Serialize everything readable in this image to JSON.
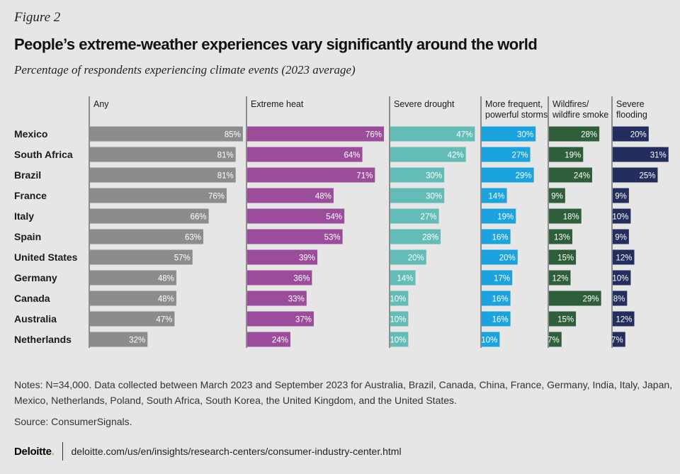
{
  "figure_label": "Figure 2",
  "notes": "Notes: N=34,000. Data collected between March 2023 and September 2023 for Australia, Brazil, Canada, China, France, Germany, India, Italy, Japan, Mexico, Netherlands, Poland, South Africa, South Korea, the United Kingdom, and the United States.",
  "source": "Source: ConsumerSignals.",
  "footer": {
    "logo": "Deloitte",
    "logo_dot": ".",
    "url": "deloitte.com/us/en/insights/research-centers/consumer-industry-center.html"
  },
  "chart_data": {
    "type": "bar",
    "orientation": "horizontal",
    "title": "People’s extreme-weather experiences vary significantly around the world",
    "subtitle": "Percentage of respondents experiencing climate events (2023 average)",
    "categories": [
      "Mexico",
      "South Africa",
      "Brazil",
      "France",
      "Italy",
      "Spain",
      "United States",
      "Germany",
      "Canada",
      "Australia",
      "Netherlands"
    ],
    "value_suffix": "%",
    "series": [
      {
        "name": "Any",
        "label_lines": [
          "Any"
        ],
        "color": "#8c8c8c",
        "values": [
          85,
          81,
          81,
          76,
          66,
          63,
          57,
          48,
          48,
          47,
          32
        ]
      },
      {
        "name": "Extreme heat",
        "label_lines": [
          "Extreme heat"
        ],
        "color": "#9b4d9b",
        "values": [
          76,
          64,
          71,
          48,
          54,
          53,
          39,
          36,
          33,
          37,
          24
        ]
      },
      {
        "name": "Severe drought",
        "label_lines": [
          "Severe drought"
        ],
        "color": "#63bdb6",
        "values": [
          47,
          42,
          30,
          30,
          27,
          28,
          20,
          14,
          10,
          10,
          10
        ]
      },
      {
        "name": "More frequent, powerful storms",
        "label_lines": [
          "More frequent,",
          "powerful storms"
        ],
        "color": "#1ba3e0",
        "values": [
          30,
          27,
          29,
          14,
          19,
          16,
          20,
          17,
          16,
          16,
          10
        ]
      },
      {
        "name": "Wildfires/ wildfire smoke",
        "label_lines": [
          "Wildfires/",
          "wildfire smoke"
        ],
        "color": "#2e5e3a",
        "values": [
          28,
          19,
          24,
          9,
          18,
          13,
          15,
          12,
          29,
          15,
          7
        ]
      },
      {
        "name": "Severe flooding",
        "label_lines": [
          "Severe",
          "flooding"
        ],
        "color": "#232d5e",
        "values": [
          20,
          31,
          25,
          9,
          10,
          9,
          12,
          10,
          8,
          12,
          7
        ]
      }
    ],
    "grid": false,
    "legend": "none"
  }
}
